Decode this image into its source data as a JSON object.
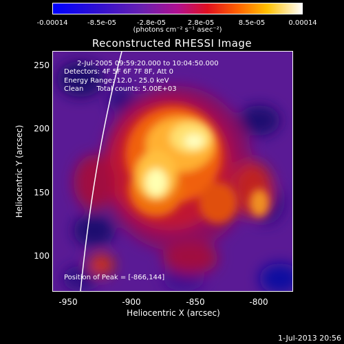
{
  "colorbar": {
    "ticks": [
      "-0.00014",
      "-8.5e-05",
      "-2.8e-05",
      "2.8e-05",
      "8.5e-05",
      "0.00014"
    ],
    "units": "(photons cm⁻² s⁻¹ asec⁻²)"
  },
  "title": "Reconstructed RHESSI Image",
  "annotations": {
    "time": "2-Jul-2005 09:59:20.000 to 10:04:50.000",
    "detectors": "Detectors: 4F 5F 6F 7F 8F, Att 0",
    "energy": "Energy Range: 12.0 - 25.0 keV",
    "clean": "Clean      Total counts: 5.00E+03",
    "peak": "Position of Peak = [-866,144]"
  },
  "axes": {
    "xlabel": "Heliocentric X (arcsec)",
    "ylabel": "Heliocentric Y (arcsec)",
    "xticks": [
      "-950",
      "-900",
      "-850",
      "-800"
    ],
    "yticks": [
      "250",
      "200",
      "150",
      "100"
    ],
    "xrange": [
      -965,
      -775
    ],
    "yrange": [
      70,
      260
    ]
  },
  "footer": "1-Jul-2013 20:56"
}
